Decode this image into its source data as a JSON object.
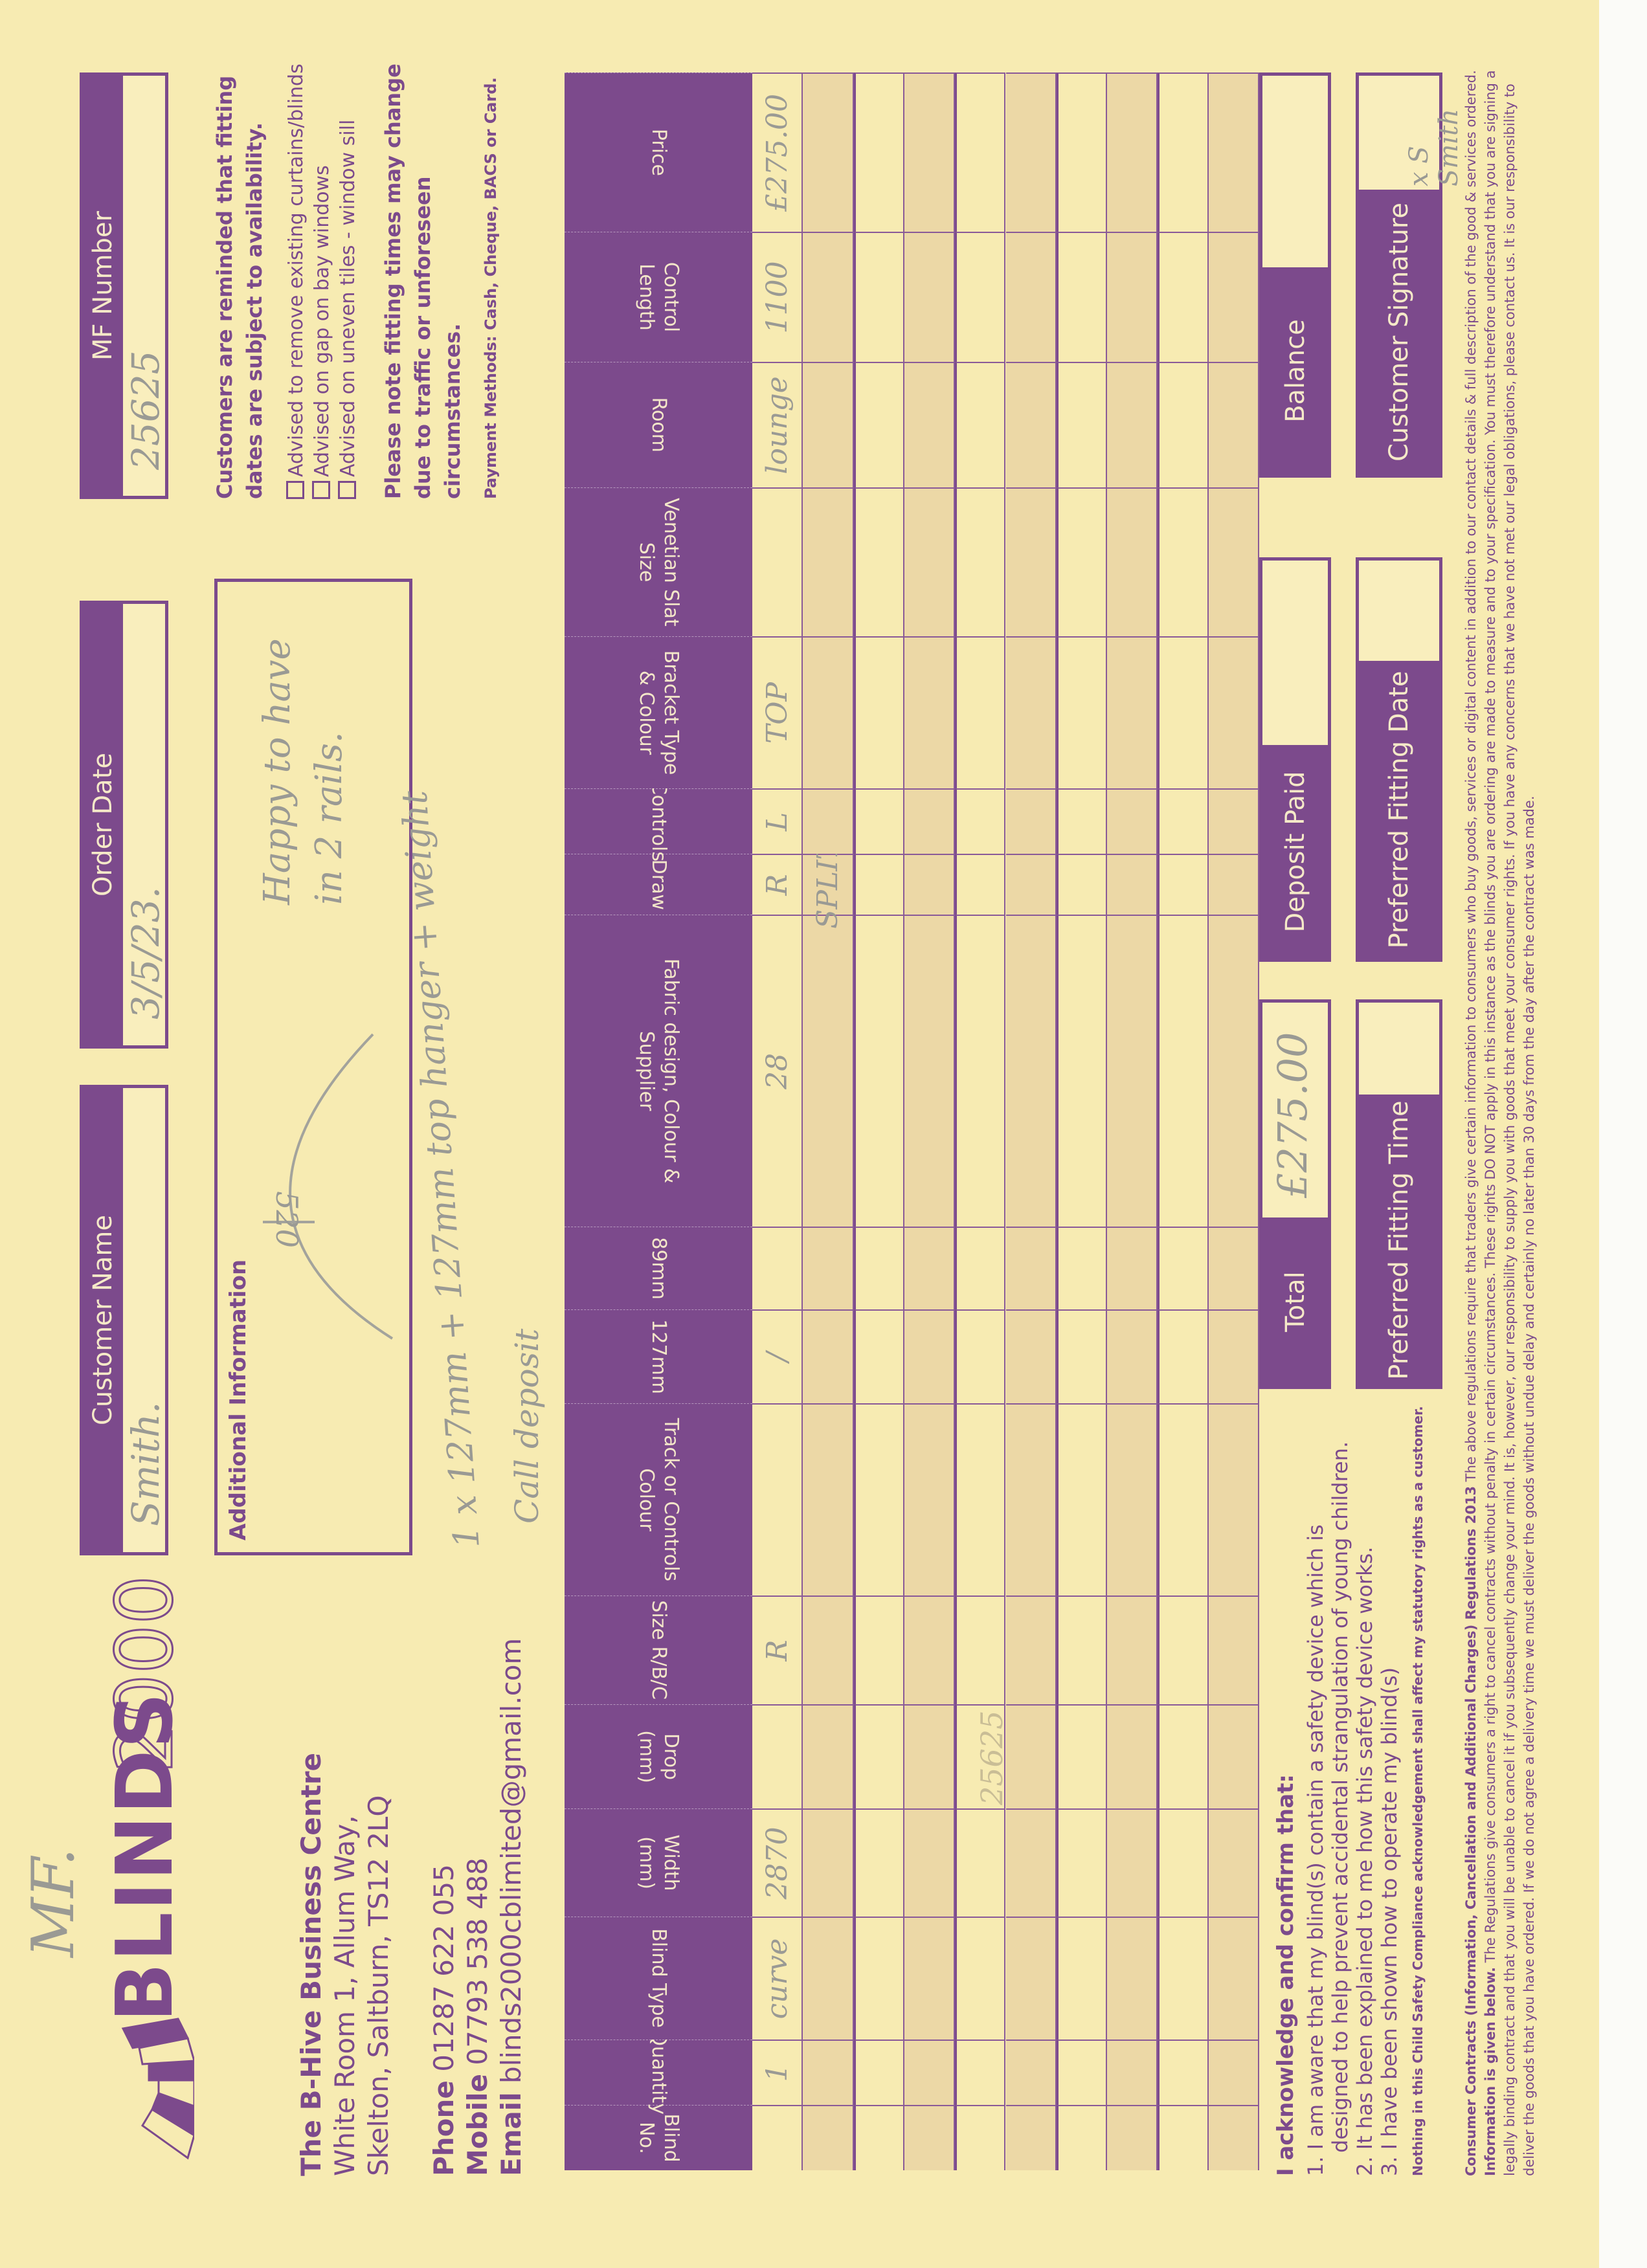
{
  "brand": {
    "logo_text_bold": "BLINDS",
    "logo_text_outline": "2000",
    "handwritten_note": "MF."
  },
  "address": {
    "name": "The B-Hive Business Centre",
    "line1": "White Room 1, Allum Way,",
    "line2": "Skelton, Saltburn, TS12 2LQ"
  },
  "contact": {
    "phone_label": "Phone",
    "phone": "01287 622 055",
    "mobile_label": "Mobile",
    "mobile": "07793 538 488",
    "email_label": "Email",
    "email": "blinds2000cblimited@gmail.com"
  },
  "header": {
    "customer_name": {
      "label": "Customer Name",
      "value": "Smith."
    },
    "order_date": {
      "label": "Order Date",
      "value": "3/5/23."
    },
    "mf_number": {
      "label": "MF Number",
      "value": "25625"
    }
  },
  "additional_info": {
    "label": "Additional Information",
    "sketch_value": "520",
    "note1": "Happy to have",
    "note2": "in 2 rails.",
    "note3": "1 x 127mm + 127mm top hanger + weight",
    "note4": "Call deposit"
  },
  "notices": {
    "fitting": "Customers are reminded that fitting dates are subject to availability.",
    "checks": [
      "Advised to remove existing curtains/blinds",
      "Advised on gap on bay windows",
      "Advised on uneven tiles - window sill"
    ],
    "traffic": "Please note fitting times may change due to traffic or unforeseen circumstances.",
    "payment": "Payment Methods: Cash, Cheque, BACS or Card."
  },
  "table": {
    "headers": [
      "Blind No.",
      "Quantity",
      "Blind Type",
      "Width (mm)",
      "Drop (mm)",
      "Size R/B/C",
      "Track or Controls Colour",
      "127mm",
      "89mm",
      "Fabric design, Colour & Supplier",
      "Draw",
      "Controls",
      "Bracket Type & Colour",
      "Venetian Slat Size",
      "Room",
      "Control Length",
      "Price"
    ],
    "rows": [
      [
        "",
        "1",
        "curve",
        "2870",
        "",
        "R",
        "",
        "/",
        "",
        "28",
        "R",
        "L",
        "TOP",
        "",
        "lounge",
        "1100",
        "£275.00"
      ],
      [
        "",
        "",
        "",
        "",
        "",
        "",
        "",
        "",
        "",
        "",
        "SPLIT",
        "",
        "",
        "",
        "",
        "",
        ""
      ],
      [
        "",
        "",
        "",
        "",
        "",
        "",
        "",
        "",
        "",
        "",
        "",
        "",
        "",
        "",
        "",
        "",
        ""
      ],
      [
        "",
        "",
        "",
        "",
        "",
        "",
        "",
        "",
        "",
        "",
        "",
        "",
        "",
        "",
        "",
        "",
        ""
      ],
      [
        "",
        "",
        "",
        "",
        "",
        "",
        "",
        "",
        "",
        "",
        "",
        "",
        "",
        "",
        "",
        "",
        ""
      ],
      [
        "",
        "",
        "",
        "",
        "",
        "",
        "",
        "",
        "",
        "",
        "",
        "",
        "",
        "",
        "",
        "",
        ""
      ],
      [
        "",
        "",
        "",
        "",
        "",
        "",
        "",
        "",
        "",
        "",
        "",
        "",
        "",
        "",
        "",
        "",
        ""
      ],
      [
        "",
        "",
        "",
        "",
        "",
        "",
        "",
        "",
        "",
        "",
        "",
        "",
        "",
        "",
        "",
        "",
        ""
      ],
      [
        "",
        "",
        "",
        "",
        "",
        "",
        "",
        "",
        "",
        "",
        "",
        "",
        "",
        "",
        "",
        "",
        ""
      ],
      [
        "",
        "",
        "",
        "",
        "",
        "",
        "",
        "",
        "",
        "",
        "",
        "",
        "",
        "",
        "",
        "",
        ""
      ]
    ],
    "faint_note": "25625"
  },
  "acknowledge": {
    "title": "I acknowledge and confirm that:",
    "item1a": "1. I am aware that my blind(s) contain a safety device which is",
    "item1b": "designed to help prevent accidental strangulation of young children.",
    "item2": "2. It has been explained to me how this safety device works.",
    "item3": "3. I have been shown how to operate my blind(s)",
    "note": "Nothing in this Child Safety Compliance acknowledgement shall affect my statutory rights as a customer."
  },
  "totals": {
    "total": {
      "label": "Total",
      "value": "£275.00"
    },
    "deposit": {
      "label": "Deposit Paid",
      "value": ""
    },
    "balance": {
      "label": "Balance",
      "value": ""
    },
    "fitting_time": {
      "label": "Preferred Fitting Time",
      "value": ""
    },
    "fitting_date": {
      "label": "Preferred Fitting Date",
      "value": ""
    },
    "signature": {
      "label": "Customer Signature",
      "value": "x S Smith"
    }
  },
  "legal": {
    "title": "Consumer Contracts (Information, Cancellation and Additional Charges) Regulations 2013",
    "p1": " The above regulations require that traders give certain information to consumers who buy goods, services or digital content in addition to our contact details & full description of the good & services ordered. ",
    "bold2": "Information is given below.",
    "p2": " The Regulations give consumers a right to cancel contracts without penalty in certain circumstances. These rights DO NOT apply in this instance as the blinds you are ordering are made to measure and to your specification. You must therefore understand that you are signing a legally binding contract and that you will be unable to cancel it if you subsequently change your mind. It is, however, our responsibility to supply you with goods that meet your consumer rights. If you have any concerns that we have not met our legal obligations, please contact us. It is our responsibility to deliver the goods that you have ordered. If we do not agree a delivery time we must deliver the goods without undue delay and certainly no later than 30 days from the day after the contract was made."
  },
  "colors": {
    "brand_purple": "#7c4a8c",
    "paper": "#f7ebb2",
    "stripe": "#ecd8a6"
  }
}
